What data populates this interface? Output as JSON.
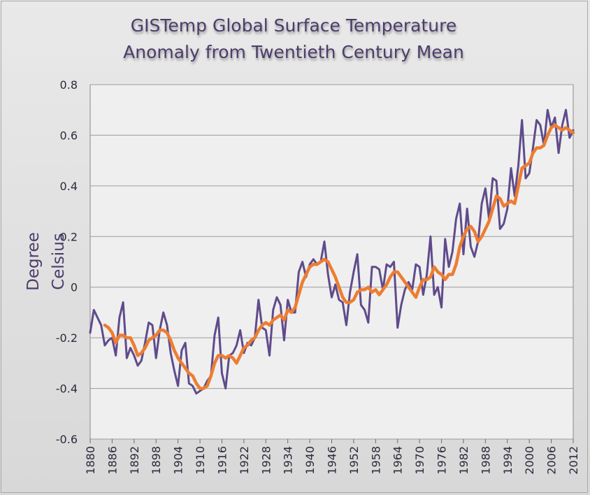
{
  "chart_data": {
    "type": "line",
    "title": "GISTemp Global Surface Temperature Anomaly from Twentieth Century Mean",
    "title_lines": [
      "GISTemp Global Surface Temperature",
      "Anomaly from Twentieth Century Mean"
    ],
    "xlabel": "",
    "ylabel": "Degree Celsius",
    "ylim": [
      -0.6,
      0.8
    ],
    "xlim": [
      1880,
      2012
    ],
    "y_ticks": [
      "0.8",
      "0.6",
      "0.4",
      "0.2",
      "0",
      "-0.2",
      "-0.4",
      "-0.6"
    ],
    "x_ticks": [
      "1880",
      "1886",
      "1892",
      "1898",
      "1904",
      "1910",
      "1916",
      "1922",
      "1928",
      "1934",
      "1940",
      "1946",
      "1952",
      "1958",
      "1964",
      "1970",
      "1976",
      "1982",
      "1988",
      "1994",
      "2000",
      "2006",
      "2012"
    ],
    "grid": true,
    "legend": "none",
    "colors": {
      "annual": "#5f4b8b",
      "smoothed": "#ed7d31",
      "plot_bg": "#efefef",
      "grid": "#9c9c9c"
    },
    "series": [
      {
        "style": "annual",
        "x": [
          1880,
          1881,
          1882,
          1883,
          1884,
          1885,
          1886,
          1887,
          1888,
          1889,
          1890,
          1891,
          1892,
          1893,
          1894,
          1895,
          1896,
          1897,
          1898,
          1899,
          1900,
          1901,
          1902,
          1903,
          1904,
          1905,
          1906,
          1907,
          1908,
          1909,
          1910,
          1911,
          1912,
          1913,
          1914,
          1915,
          1916,
          1917,
          1918,
          1919,
          1920,
          1921,
          1922,
          1923,
          1924,
          1925,
          1926,
          1927,
          1928,
          1929,
          1930,
          1931,
          1932,
          1933,
          1934,
          1935,
          1936,
          1937,
          1938,
          1939,
          1940,
          1941,
          1942,
          1943,
          1944,
          1945,
          1946,
          1947,
          1948,
          1949,
          1950,
          1951,
          1952,
          1953,
          1954,
          1955,
          1956,
          1957,
          1958,
          1959,
          1960,
          1961,
          1962,
          1963,
          1964,
          1965,
          1966,
          1967,
          1968,
          1969,
          1970,
          1971,
          1972,
          1973,
          1974,
          1975,
          1976,
          1977,
          1978,
          1979,
          1980,
          1981,
          1982,
          1983,
          1984,
          1985,
          1986,
          1987,
          1988,
          1989,
          1990,
          1991,
          1992,
          1993,
          1994,
          1995,
          1996,
          1997,
          1998,
          1999,
          2000,
          2001,
          2002,
          2003,
          2004,
          2005,
          2006,
          2007,
          2008,
          2009,
          2010,
          2011,
          2012
        ],
        "values": [
          -0.18,
          -0.09,
          -0.12,
          -0.15,
          -0.23,
          -0.21,
          -0.2,
          -0.27,
          -0.12,
          -0.06,
          -0.28,
          -0.24,
          -0.27,
          -0.31,
          -0.29,
          -0.22,
          -0.14,
          -0.15,
          -0.28,
          -0.17,
          -0.1,
          -0.15,
          -0.26,
          -0.33,
          -0.39,
          -0.25,
          -0.22,
          -0.38,
          -0.39,
          -0.42,
          -0.41,
          -0.4,
          -0.37,
          -0.35,
          -0.19,
          -0.12,
          -0.34,
          -0.4,
          -0.27,
          -0.26,
          -0.23,
          -0.17,
          -0.26,
          -0.22,
          -0.23,
          -0.2,
          -0.05,
          -0.16,
          -0.17,
          -0.27,
          -0.09,
          -0.04,
          -0.07,
          -0.21,
          -0.05,
          -0.1,
          -0.1,
          0.06,
          0.1,
          0.04,
          0.09,
          0.11,
          0.09,
          0.1,
          0.18,
          0.05,
          -0.04,
          0.01,
          -0.05,
          -0.06,
          -0.15,
          -0.02,
          0.06,
          0.13,
          -0.07,
          -0.09,
          -0.14,
          0.08,
          0.08,
          0.07,
          -0.01,
          0.09,
          0.08,
          0.1,
          -0.16,
          -0.07,
          -0.01,
          0.02,
          -0.01,
          0.09,
          0.08,
          -0.03,
          0.05,
          0.2,
          -0.03,
          0.0,
          -0.08,
          0.19,
          0.08,
          0.14,
          0.27,
          0.33,
          0.13,
          0.31,
          0.16,
          0.12,
          0.18,
          0.33,
          0.39,
          0.27,
          0.43,
          0.42,
          0.23,
          0.25,
          0.31,
          0.47,
          0.36,
          0.48,
          0.66,
          0.43,
          0.45,
          0.55,
          0.66,
          0.64,
          0.56,
          0.7,
          0.63,
          0.67,
          0.53,
          0.64,
          0.7,
          0.59,
          0.62
        ]
      },
      {
        "style": "smoothed",
        "x": [
          1884,
          1885,
          1886,
          1887,
          1888,
          1889,
          1890,
          1891,
          1892,
          1893,
          1894,
          1895,
          1896,
          1897,
          1898,
          1899,
          1900,
          1901,
          1902,
          1903,
          1904,
          1905,
          1906,
          1907,
          1908,
          1909,
          1910,
          1911,
          1912,
          1913,
          1914,
          1915,
          1916,
          1917,
          1918,
          1919,
          1920,
          1921,
          1922,
          1923,
          1924,
          1925,
          1926,
          1927,
          1928,
          1929,
          1930,
          1931,
          1932,
          1933,
          1934,
          1935,
          1936,
          1937,
          1938,
          1939,
          1940,
          1941,
          1942,
          1943,
          1944,
          1945,
          1946,
          1947,
          1948,
          1949,
          1950,
          1951,
          1952,
          1953,
          1954,
          1955,
          1956,
          1957,
          1958,
          1959,
          1960,
          1961,
          1962,
          1963,
          1964,
          1965,
          1966,
          1967,
          1968,
          1969,
          1970,
          1971,
          1972,
          1973,
          1974,
          1975,
          1976,
          1977,
          1978,
          1979,
          1980,
          1981,
          1982,
          1983,
          1984,
          1985,
          1986,
          1987,
          1988,
          1989,
          1990,
          1991,
          1992,
          1993,
          1994,
          1995,
          1996,
          1997,
          1998,
          1999,
          2000,
          2001,
          2002,
          2003,
          2004,
          2005,
          2006,
          2007,
          2008,
          2009,
          2010,
          2011,
          2012
        ],
        "values": [
          -0.15,
          -0.16,
          -0.18,
          -0.22,
          -0.19,
          -0.19,
          -0.2,
          -0.2,
          -0.23,
          -0.27,
          -0.26,
          -0.24,
          -0.21,
          -0.2,
          -0.19,
          -0.17,
          -0.17,
          -0.18,
          -0.21,
          -0.25,
          -0.28,
          -0.3,
          -0.32,
          -0.34,
          -0.35,
          -0.38,
          -0.4,
          -0.4,
          -0.39,
          -0.35,
          -0.3,
          -0.27,
          -0.27,
          -0.28,
          -0.27,
          -0.28,
          -0.3,
          -0.27,
          -0.24,
          -0.23,
          -0.21,
          -0.2,
          -0.17,
          -0.15,
          -0.14,
          -0.15,
          -0.13,
          -0.12,
          -0.11,
          -0.13,
          -0.09,
          -0.1,
          -0.08,
          -0.03,
          0.02,
          0.05,
          0.08,
          0.09,
          0.09,
          0.1,
          0.11,
          0.1,
          0.07,
          0.04,
          0.0,
          -0.04,
          -0.06,
          -0.06,
          -0.05,
          -0.02,
          -0.01,
          -0.01,
          0.0,
          -0.02,
          -0.01,
          -0.03,
          -0.01,
          0.01,
          0.04,
          0.06,
          0.06,
          0.04,
          0.02,
          0.0,
          -0.02,
          -0.04,
          0.0,
          0.03,
          0.03,
          0.04,
          0.08,
          0.06,
          0.05,
          0.03,
          0.05,
          0.05,
          0.09,
          0.16,
          0.2,
          0.23,
          0.24,
          0.22,
          0.18,
          0.2,
          0.23,
          0.26,
          0.31,
          0.36,
          0.35,
          0.32,
          0.33,
          0.34,
          0.33,
          0.4,
          0.47,
          0.48,
          0.49,
          0.53,
          0.55,
          0.55,
          0.56,
          0.6,
          0.63,
          0.64,
          0.63,
          0.62,
          0.63,
          0.62,
          0.61
        ]
      }
    ]
  }
}
